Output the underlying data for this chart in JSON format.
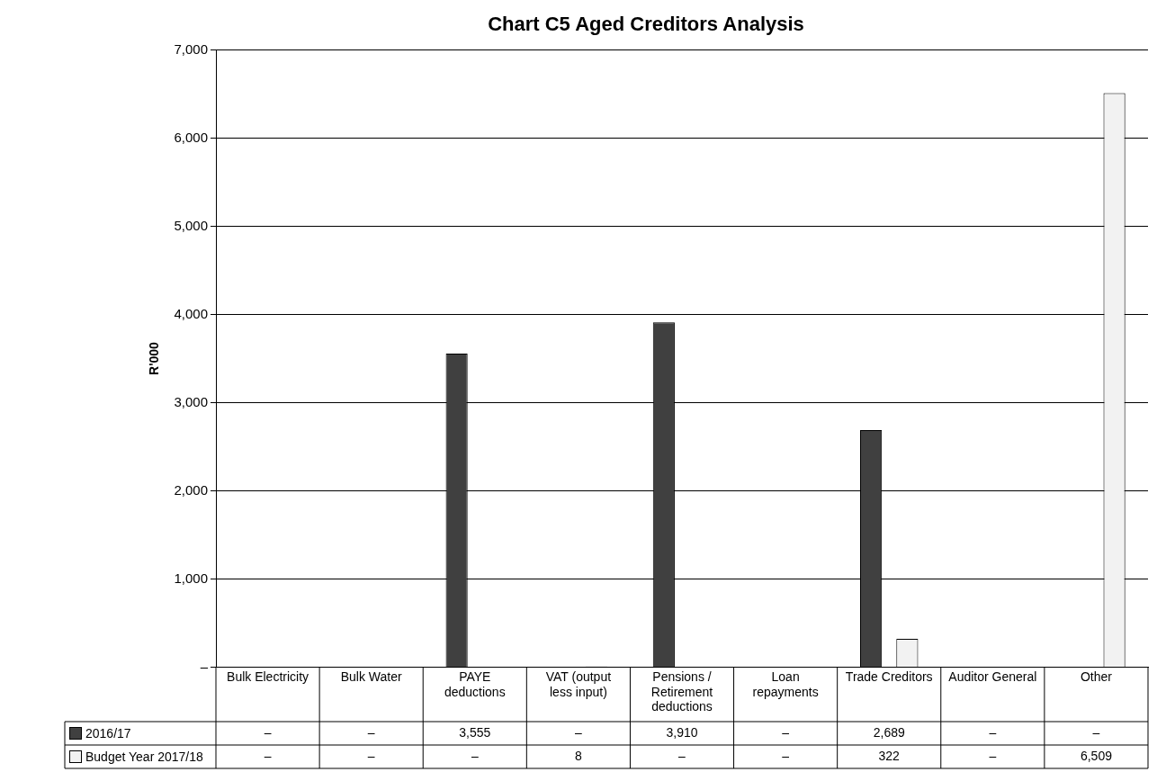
{
  "chart_data": {
    "type": "bar",
    "title": "Chart C5 Aged Creditors Analysis",
    "ylabel": "R'000",
    "categories": [
      "Bulk Electricity",
      "Bulk Water",
      "PAYE deductions",
      "VAT (output less input)",
      "Pensions / Retirement deductions",
      "Loan repayments",
      "Trade Creditors",
      "Auditor General",
      "Other"
    ],
    "series": [
      {
        "name": "2016/17",
        "color": "#404040",
        "values": [
          0,
          0,
          3555,
          0,
          3910,
          0,
          2689,
          0,
          0
        ],
        "value_labels": [
          "–",
          "–",
          "3,555",
          "–",
          "3,910",
          "–",
          "2,689",
          "–",
          "–"
        ]
      },
      {
        "name": "Budget Year 2017/18",
        "color": "#f2f2f2",
        "values": [
          0,
          0,
          0,
          8,
          0,
          0,
          322,
          0,
          6509
        ],
        "value_labels": [
          "–",
          "–",
          "–",
          "8",
          "–",
          "–",
          "322",
          "–",
          "6,509"
        ]
      }
    ],
    "ylim": [
      0,
      7000
    ],
    "yticks": [
      {
        "value": 0,
        "label": "–"
      },
      {
        "value": 1000,
        "label": "1,000"
      },
      {
        "value": 2000,
        "label": "2,000"
      },
      {
        "value": 3000,
        "label": "3,000"
      },
      {
        "value": 4000,
        "label": "4,000"
      },
      {
        "value": 5000,
        "label": "5,000"
      },
      {
        "value": 6000,
        "label": "6,000"
      },
      {
        "value": 7000,
        "label": "7,000"
      }
    ],
    "grid": "y",
    "legend": "bottom"
  }
}
